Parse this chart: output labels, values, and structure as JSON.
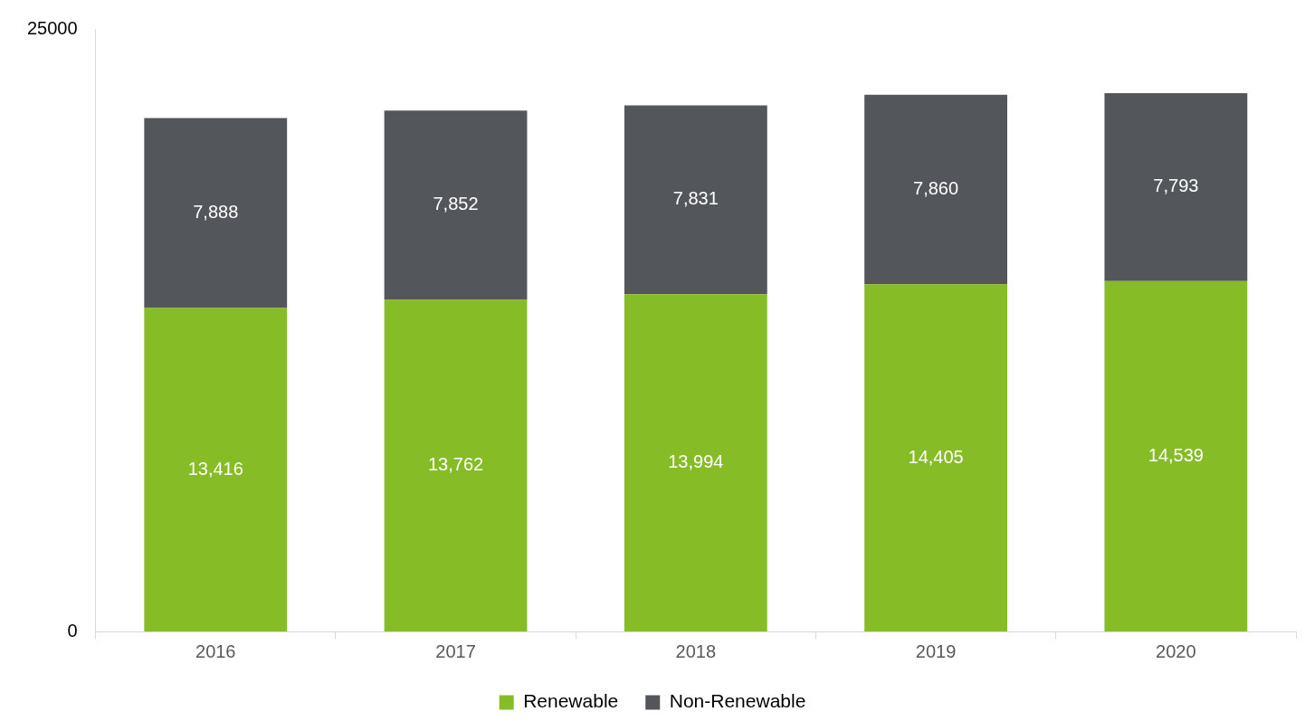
{
  "chart_data": {
    "type": "bar",
    "stacked": true,
    "categories": [
      "2016",
      "2017",
      "2018",
      "2019",
      "2020"
    ],
    "series": [
      {
        "name": "Renewable",
        "color": "#86bc25",
        "values": [
          13416,
          13762,
          13994,
          14405,
          14539
        ],
        "value_labels": [
          "13,416",
          "13,762",
          "13,994",
          "14,405",
          "14,539"
        ]
      },
      {
        "name": "Non-Renewable",
        "color": "#53565a",
        "values": [
          7888,
          7852,
          7831,
          7860,
          7793
        ],
        "value_labels": [
          "7,888",
          "7,852",
          "7,831",
          "7,860",
          "7,793"
        ]
      }
    ],
    "ylim": [
      0,
      25000
    ],
    "yticks": [
      0,
      25000
    ],
    "grid": false,
    "legend": "bottom"
  }
}
